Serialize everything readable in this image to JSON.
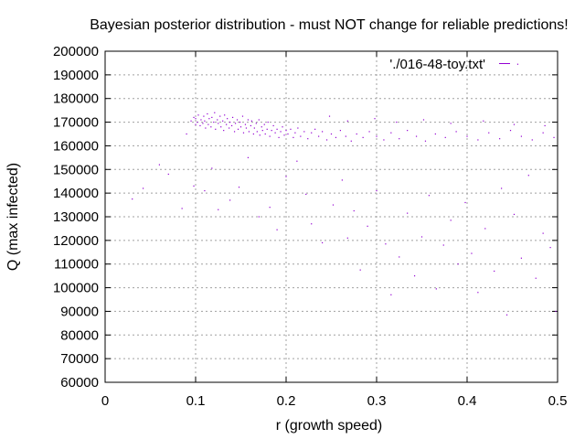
{
  "chart_data": {
    "type": "scatter",
    "title": "Bayesian posterior distribution - must NOT change for reliable predictions!",
    "xlabel": "r (growth speed)",
    "ylabel": "Q (max infected)",
    "xlim": [
      0,
      0.5
    ],
    "ylim": [
      60000,
      200000
    ],
    "x_ticks": [
      "0",
      "0.1",
      "0.2",
      "0.3",
      "0.4",
      "0.5"
    ],
    "x_tick_values": [
      0,
      0.1,
      0.2,
      0.3,
      0.4,
      0.5
    ],
    "y_ticks": [
      "60000",
      "70000",
      "80000",
      "90000",
      "100000",
      "110000",
      "120000",
      "130000",
      "140000",
      "150000",
      "160000",
      "170000",
      "180000",
      "190000",
      "200000"
    ],
    "y_tick_values": [
      60000,
      70000,
      80000,
      90000,
      100000,
      110000,
      120000,
      130000,
      140000,
      150000,
      160000,
      170000,
      180000,
      190000,
      200000
    ],
    "grid": true,
    "legend_position": "top-right",
    "series": [
      {
        "name": "'./016-48-toy.txt'",
        "color": "#9400d3",
        "points": [
          [
            0.095,
            170500
          ],
          [
            0.098,
            172000
          ],
          [
            0.1,
            169000
          ],
          [
            0.1,
            171500
          ],
          [
            0.102,
            170000
          ],
          [
            0.103,
            173000
          ],
          [
            0.105,
            168500
          ],
          [
            0.106,
            171000
          ],
          [
            0.108,
            169500
          ],
          [
            0.109,
            172500
          ],
          [
            0.11,
            170500
          ],
          [
            0.111,
            167500
          ],
          [
            0.113,
            173500
          ],
          [
            0.114,
            169000
          ],
          [
            0.115,
            171500
          ],
          [
            0.117,
            168000
          ],
          [
            0.118,
            172000
          ],
          [
            0.12,
            170000
          ],
          [
            0.121,
            174000
          ],
          [
            0.122,
            167000
          ],
          [
            0.124,
            171000
          ],
          [
            0.125,
            169500
          ],
          [
            0.127,
            172500
          ],
          [
            0.128,
            168000
          ],
          [
            0.13,
            170500
          ],
          [
            0.131,
            166500
          ],
          [
            0.132,
            173000
          ],
          [
            0.134,
            169000
          ],
          [
            0.135,
            171500
          ],
          [
            0.137,
            167500
          ],
          [
            0.138,
            170000
          ],
          [
            0.14,
            168500
          ],
          [
            0.141,
            172000
          ],
          [
            0.143,
            166000
          ],
          [
            0.144,
            169500
          ],
          [
            0.146,
            171000
          ],
          [
            0.147,
            167000
          ],
          [
            0.149,
            170000
          ],
          [
            0.15,
            168000
          ],
          [
            0.152,
            172500
          ],
          [
            0.153,
            165500
          ],
          [
            0.155,
            169000
          ],
          [
            0.156,
            167500
          ],
          [
            0.158,
            171000
          ],
          [
            0.159,
            166000
          ],
          [
            0.161,
            168500
          ],
          [
            0.162,
            170500
          ],
          [
            0.164,
            165000
          ],
          [
            0.165,
            167500
          ],
          [
            0.167,
            169500
          ],
          [
            0.168,
            166000
          ],
          [
            0.17,
            171000
          ],
          [
            0.171,
            164500
          ],
          [
            0.173,
            168000
          ],
          [
            0.174,
            166500
          ],
          [
            0.176,
            169000
          ],
          [
            0.177,
            165000
          ],
          [
            0.179,
            167000
          ],
          [
            0.18,
            170000
          ],
          [
            0.182,
            164000
          ],
          [
            0.184,
            166500
          ],
          [
            0.186,
            168500
          ],
          [
            0.188,
            165500
          ],
          [
            0.19,
            167000
          ],
          [
            0.192,
            163500
          ],
          [
            0.194,
            166000
          ],
          [
            0.196,
            168000
          ],
          [
            0.198,
            164500
          ],
          [
            0.2,
            166500
          ],
          [
            0.202,
            165000
          ],
          [
            0.205,
            167000
          ],
          [
            0.208,
            163500
          ],
          [
            0.21,
            165500
          ],
          [
            0.213,
            167500
          ],
          [
            0.216,
            164000
          ],
          [
            0.22,
            166000
          ],
          [
            0.224,
            163000
          ],
          [
            0.228,
            165500
          ],
          [
            0.232,
            167000
          ],
          [
            0.236,
            164000
          ],
          [
            0.24,
            166000
          ],
          [
            0.245,
            162500
          ],
          [
            0.25,
            165000
          ],
          [
            0.255,
            163500
          ],
          [
            0.26,
            166500
          ],
          [
            0.266,
            164000
          ],
          [
            0.272,
            162000
          ],
          [
            0.278,
            165000
          ],
          [
            0.285,
            163500
          ],
          [
            0.292,
            166000
          ],
          [
            0.3,
            164000
          ],
          [
            0.308,
            162500
          ],
          [
            0.316,
            165500
          ],
          [
            0.325,
            163000
          ],
          [
            0.334,
            166500
          ],
          [
            0.344,
            164000
          ],
          [
            0.354,
            162000
          ],
          [
            0.365,
            165000
          ],
          [
            0.376,
            163500
          ],
          [
            0.388,
            166000
          ],
          [
            0.4,
            164000
          ],
          [
            0.412,
            162500
          ],
          [
            0.424,
            165500
          ],
          [
            0.436,
            163000
          ],
          [
            0.448,
            166500
          ],
          [
            0.46,
            164000
          ],
          [
            0.472,
            162500
          ],
          [
            0.484,
            165500
          ],
          [
            0.496,
            163500
          ],
          [
            0.248,
            172500
          ],
          [
            0.268,
            170500
          ],
          [
            0.298,
            171500
          ],
          [
            0.322,
            170000
          ],
          [
            0.352,
            171000
          ],
          [
            0.382,
            169500
          ],
          [
            0.418,
            170500
          ],
          [
            0.452,
            169000
          ],
          [
            0.486,
            168500
          ],
          [
            0.03,
            137500
          ],
          [
            0.042,
            142000
          ],
          [
            0.06,
            152000
          ],
          [
            0.07,
            148000
          ],
          [
            0.085,
            133500
          ],
          [
            0.09,
            165000
          ],
          [
            0.098,
            143000
          ],
          [
            0.11,
            141000
          ],
          [
            0.118,
            150500
          ],
          [
            0.125,
            133000
          ],
          [
            0.138,
            137000
          ],
          [
            0.148,
            142500
          ],
          [
            0.158,
            155000
          ],
          [
            0.17,
            130000
          ],
          [
            0.182,
            134000
          ],
          [
            0.19,
            124500
          ],
          [
            0.2,
            147000
          ],
          [
            0.212,
            153500
          ],
          [
            0.222,
            139500
          ],
          [
            0.228,
            127000
          ],
          [
            0.24,
            119000
          ],
          [
            0.252,
            135000
          ],
          [
            0.262,
            145500
          ],
          [
            0.268,
            121000
          ],
          [
            0.275,
            132500
          ],
          [
            0.282,
            107500
          ],
          [
            0.29,
            126000
          ],
          [
            0.3,
            141000
          ],
          [
            0.31,
            118500
          ],
          [
            0.316,
            97000
          ],
          [
            0.325,
            113000
          ],
          [
            0.334,
            131500
          ],
          [
            0.342,
            105000
          ],
          [
            0.35,
            121500
          ],
          [
            0.358,
            139000
          ],
          [
            0.366,
            99500
          ],
          [
            0.374,
            118000
          ],
          [
            0.382,
            128500
          ],
          [
            0.39,
            110000
          ],
          [
            0.398,
            136000
          ],
          [
            0.405,
            114500
          ],
          [
            0.412,
            98000
          ],
          [
            0.42,
            125000
          ],
          [
            0.43,
            107000
          ],
          [
            0.438,
            142000
          ],
          [
            0.444,
            88500
          ],
          [
            0.452,
            131000
          ],
          [
            0.46,
            112500
          ],
          [
            0.468,
            147500
          ],
          [
            0.476,
            104000
          ],
          [
            0.484,
            123000
          ],
          [
            0.492,
            117000
          ],
          [
            0.498,
            90000
          ],
          [
            0.456,
            194500
          ]
        ]
      }
    ]
  }
}
